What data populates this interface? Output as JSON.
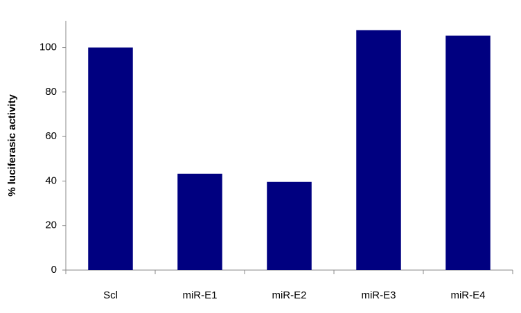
{
  "chart_data": {
    "type": "bar",
    "y_label": "% luciferasic activity",
    "categories": [
      "Scl",
      "miR-E1",
      "miR-E2",
      "miR-E3",
      "miR-E4"
    ],
    "values": [
      100,
      43.3,
      39.6,
      107.8,
      105.3
    ],
    "color": "#000080",
    "ylim": [
      0,
      112
    ],
    "yticks": [
      0,
      20,
      40,
      60,
      80,
      100
    ],
    "grid": false
  }
}
